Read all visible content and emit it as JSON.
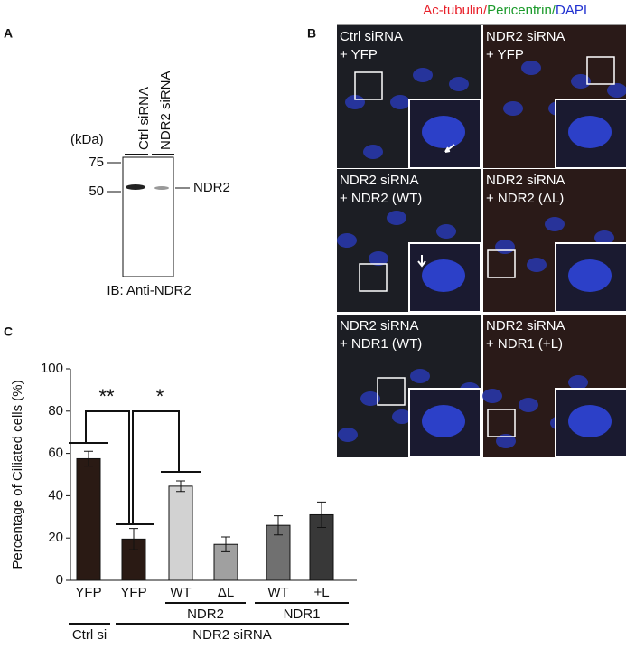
{
  "panel_a": {
    "label": "A",
    "unit": "(kDa)",
    "markers": [
      75,
      50
    ],
    "lanes": [
      "Ctrl siRNA",
      "NDR2 siRNA"
    ],
    "band": "NDR2",
    "caption": "IB: Anti-NDR2"
  },
  "panel_b": {
    "label": "B",
    "legend": [
      {
        "text": "Ac-tubulin",
        "color": "#e8202a"
      },
      {
        "text": "/",
        "color": "#e8202a"
      },
      {
        "text": "Pericentrin",
        "color": "#1a9a2a"
      },
      {
        "text": "/",
        "color": "#1a9a2a"
      },
      {
        "text": "DAPI",
        "color": "#2030d0"
      }
    ],
    "images": [
      {
        "line1": "Ctrl siRNA",
        "line2": "+ YFP"
      },
      {
        "line1": "NDR2 siRNA",
        "line2": "+ YFP"
      },
      {
        "line1": "NDR2 siRNA",
        "line2": "+ NDR2 (WT)"
      },
      {
        "line1": "NDR2 siRNA",
        "line2": "+ NDR2 (ΔL)"
      },
      {
        "line1": "NDR2 siRNA",
        "line2": "+ NDR1 (WT)"
      },
      {
        "line1": "NDR2 siRNA",
        "line2": "+ NDR1 (+L)"
      }
    ]
  },
  "chart_data": {
    "type": "bar",
    "panel_label": "C",
    "ylabel": "Percentage of Ciliated cells (%)",
    "categories": [
      "YFP",
      "YFP",
      "WT",
      "ΔL",
      "WT",
      "+L"
    ],
    "values": [
      57.5,
      19.5,
      44.5,
      17,
      26,
      31
    ],
    "errors": [
      3.5,
      5,
      2.5,
      3.5,
      4.5,
      6
    ],
    "colors": [
      "#2a1a14",
      "#2a1a14",
      "#d2d2d2",
      "#a0a0a0",
      "#707070",
      "#383838"
    ],
    "ylim": [
      0,
      100
    ],
    "yticks": [
      0,
      20,
      40,
      60,
      80,
      100
    ],
    "groups": [
      "NDR2",
      "NDR1",
      "Ctrl si",
      "NDR2 siRNA"
    ],
    "significance": [
      "**",
      "*"
    ]
  }
}
